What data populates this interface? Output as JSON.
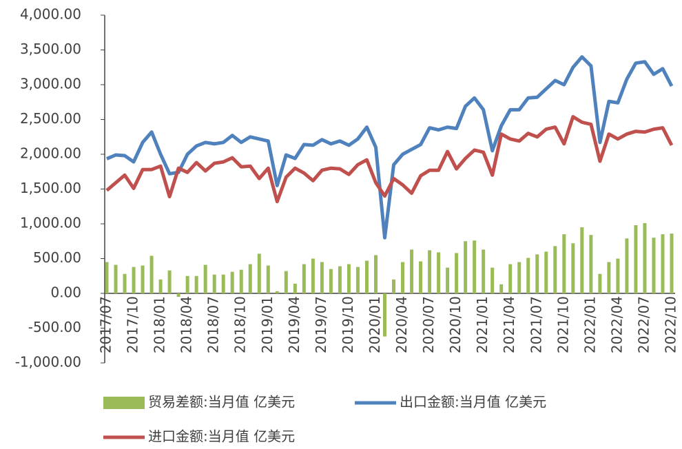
{
  "chart_data": {
    "type": "bar-line",
    "categories": [
      "2017/07",
      null,
      null,
      "2017/10",
      null,
      null,
      "2018/01",
      null,
      null,
      "2018/04",
      null,
      null,
      "2018/07",
      null,
      null,
      "2018/10",
      null,
      null,
      "2019/01",
      null,
      null,
      "2019/04",
      null,
      null,
      "2019/07",
      null,
      null,
      "2019/10",
      null,
      null,
      "2020/01",
      null,
      null,
      "2020/04",
      null,
      null,
      "2020/07",
      null,
      null,
      "2020/10",
      null,
      null,
      "2021/01",
      null,
      null,
      "2021/04",
      null,
      null,
      "2021/07",
      null,
      null,
      "2021/10",
      null,
      null,
      "2022/01",
      null,
      null,
      "2022/04",
      null,
      null,
      "2022/07",
      null,
      null,
      "2022/10"
    ],
    "series": [
      {
        "name": "贸易差额:当月值 亿美元",
        "kind": "bar",
        "color": "#9bbb59",
        "values": [
          450,
          410,
          280,
          380,
          400,
          540,
          200,
          330,
          -50,
          250,
          250,
          410,
          270,
          270,
          310,
          340,
          420,
          570,
          400,
          30,
          320,
          140,
          420,
          500,
          450,
          350,
          390,
          420,
          380,
          470,
          550,
          -620,
          200,
          450,
          630,
          460,
          620,
          590,
          370,
          580,
          750,
          760,
          630,
          370,
          130,
          420,
          450,
          510,
          560,
          600,
          680,
          850,
          720,
          950,
          840,
          280,
          450,
          500,
          790,
          980,
          1010,
          800,
          850,
          860
        ]
      },
      {
        "name": "出口金额:当月值 亿美元",
        "kind": "line",
        "color": "#4f81bd",
        "values": [
          1935,
          1990,
          1980,
          1890,
          2170,
          2320,
          2000,
          1720,
          1740,
          2000,
          2120,
          2170,
          2150,
          2170,
          2270,
          2170,
          2250,
          2220,
          2190,
          1550,
          1990,
          1940,
          2140,
          2130,
          2210,
          2150,
          2190,
          2130,
          2220,
          2390,
          2100,
          800,
          1850,
          2000,
          2070,
          2140,
          2380,
          2350,
          2390,
          2370,
          2690,
          2810,
          2640,
          2050,
          2410,
          2640,
          2640,
          2810,
          2820,
          2940,
          3060,
          3000,
          3250,
          3400,
          3270,
          2170,
          2760,
          2740,
          3080,
          3310,
          3330,
          3150,
          3230,
          2980
        ]
      },
      {
        "name": "进口金额:当月值 亿美元",
        "kind": "line",
        "color": "#c0504d",
        "values": [
          1480,
          1590,
          1700,
          1510,
          1780,
          1780,
          1830,
          1390,
          1800,
          1740,
          1880,
          1760,
          1870,
          1890,
          1950,
          1820,
          1830,
          1650,
          1800,
          1320,
          1670,
          1800,
          1730,
          1620,
          1770,
          1800,
          1790,
          1710,
          1850,
          1920,
          1590,
          1400,
          1650,
          1560,
          1440,
          1690,
          1770,
          1770,
          2040,
          1790,
          1940,
          2060,
          2030,
          1700,
          2290,
          2220,
          2190,
          2300,
          2250,
          2360,
          2390,
          2150,
          2540,
          2460,
          2430,
          1900,
          2290,
          2220,
          2290,
          2330,
          2320,
          2360,
          2380,
          2130
        ]
      }
    ],
    "ylim": [
      -1000,
      4000
    ],
    "yticks": [
      {
        "value": -1000,
        "label": "-1,000.00"
      },
      {
        "value": -500,
        "label": "-500.00"
      },
      {
        "value": 0,
        "label": "0.00"
      },
      {
        "value": 500,
        "label": "500.00"
      },
      {
        "value": 1000,
        "label": "1,000.00"
      },
      {
        "value": 1500,
        "label": "1,500.00"
      },
      {
        "value": 2000,
        "label": "2,000.00"
      },
      {
        "value": 2500,
        "label": "2,500.00"
      },
      {
        "value": 3000,
        "label": "3,000.00"
      },
      {
        "value": 3500,
        "label": "3,500.00"
      },
      {
        "value": 4000,
        "label": "4,000.00"
      }
    ],
    "grid": false,
    "legend": "bottom"
  }
}
